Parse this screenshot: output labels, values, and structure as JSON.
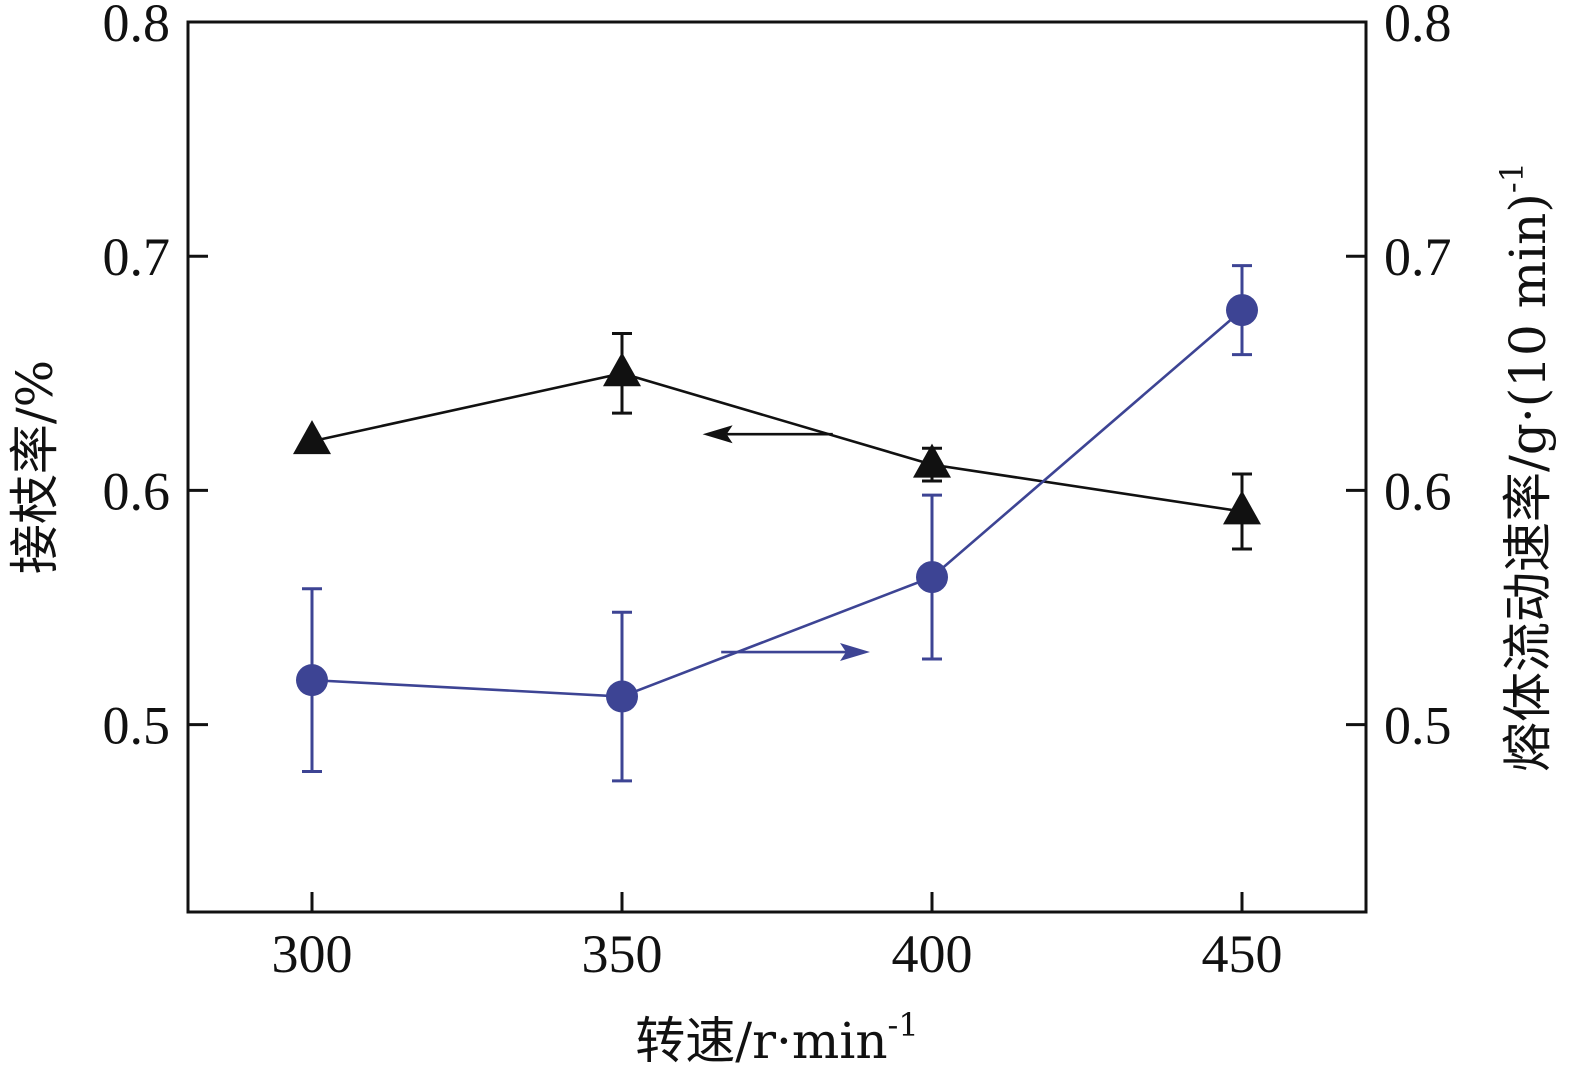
{
  "chart_data": {
    "type": "line",
    "x_axis": {
      "label": "转速/r·min",
      "label_sup": "-1",
      "range": [
        280,
        470
      ],
      "ticks": [
        300,
        350,
        400,
        450
      ]
    },
    "y_left": {
      "label": "接枝率/%",
      "range": [
        0.42,
        0.8
      ],
      "ticks": [
        0.5,
        0.6,
        0.7,
        0.8
      ],
      "tick_labels": [
        "0.5",
        "0.6",
        "0.7",
        "0.8"
      ]
    },
    "y_right": {
      "label": "熔体流动速率/g·(10 min)",
      "label_sup": "-1",
      "range": [
        0.42,
        0.8
      ],
      "ticks": [
        0.5,
        0.6,
        0.7,
        0.8
      ],
      "tick_labels": [
        "0.5",
        "0.6",
        "0.7",
        "0.8"
      ]
    },
    "series": [
      {
        "axis": "left",
        "marker": "triangle",
        "color": "#111111",
        "x": [
          300,
          350,
          400,
          450
        ],
        "y": [
          0.621,
          0.65,
          0.611,
          0.591
        ],
        "err": [
          0,
          0.017,
          0.007,
          0.016
        ]
      },
      {
        "axis": "right",
        "marker": "circle",
        "color": "#3d4494",
        "x": [
          300,
          350,
          400,
          450
        ],
        "y": [
          0.519,
          0.512,
          0.563,
          0.677
        ],
        "err": [
          0.039,
          0.036,
          0.035,
          0.019
        ]
      }
    ],
    "annotations": [
      {
        "type": "arrow",
        "direction": "left",
        "points_to": "left",
        "color": "#111111",
        "x_from": 384,
        "x_to": 363,
        "y": 0.624
      },
      {
        "type": "arrow",
        "direction": "right",
        "points_to": "right",
        "color": "#3d4494",
        "x_from": 366,
        "x_to": 390,
        "y": 0.531
      }
    ],
    "grid": false
  }
}
